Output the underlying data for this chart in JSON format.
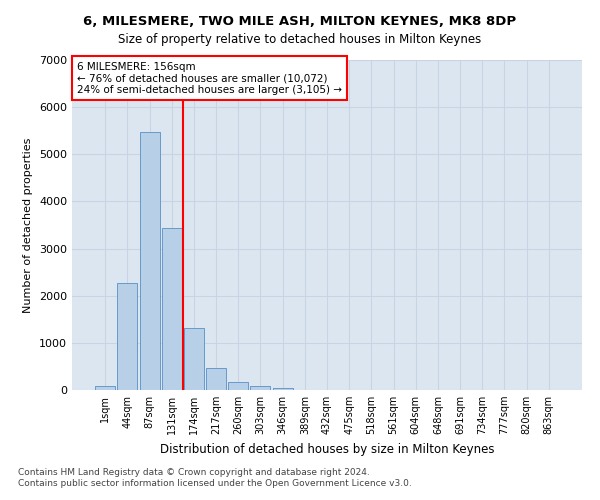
{
  "title": "6, MILESMERE, TWO MILE ASH, MILTON KEYNES, MK8 8DP",
  "subtitle": "Size of property relative to detached houses in Milton Keynes",
  "xlabel": "Distribution of detached houses by size in Milton Keynes",
  "ylabel": "Number of detached properties",
  "footnote1": "Contains HM Land Registry data © Crown copyright and database right 2024.",
  "footnote2": "Contains public sector information licensed under the Open Government Licence v3.0.",
  "bar_labels": [
    "1sqm",
    "44sqm",
    "87sqm",
    "131sqm",
    "174sqm",
    "217sqm",
    "260sqm",
    "303sqm",
    "346sqm",
    "389sqm",
    "432sqm",
    "475sqm",
    "518sqm",
    "561sqm",
    "604sqm",
    "648sqm",
    "691sqm",
    "734sqm",
    "777sqm",
    "820sqm",
    "863sqm"
  ],
  "bar_values": [
    75,
    2280,
    5480,
    3440,
    1310,
    470,
    165,
    80,
    50,
    0,
    0,
    0,
    0,
    0,
    0,
    0,
    0,
    0,
    0,
    0,
    0
  ],
  "bar_color": "#b8cfe8",
  "bar_edgecolor": "#6699cc",
  "grid_color": "#c8d4e4",
  "background_color": "#dce6f0",
  "vline_x": 3.5,
  "vline_color": "red",
  "annotation_title": "6 MILESMERE: 156sqm",
  "annotation_line1": "← 76% of detached houses are smaller (10,072)",
  "annotation_line2": "24% of semi-detached houses are larger (3,105) →",
  "annotation_box_color": "white",
  "annotation_box_edgecolor": "red",
  "ylim": [
    0,
    7000
  ],
  "yticks": [
    0,
    1000,
    2000,
    3000,
    4000,
    5000,
    6000,
    7000
  ]
}
